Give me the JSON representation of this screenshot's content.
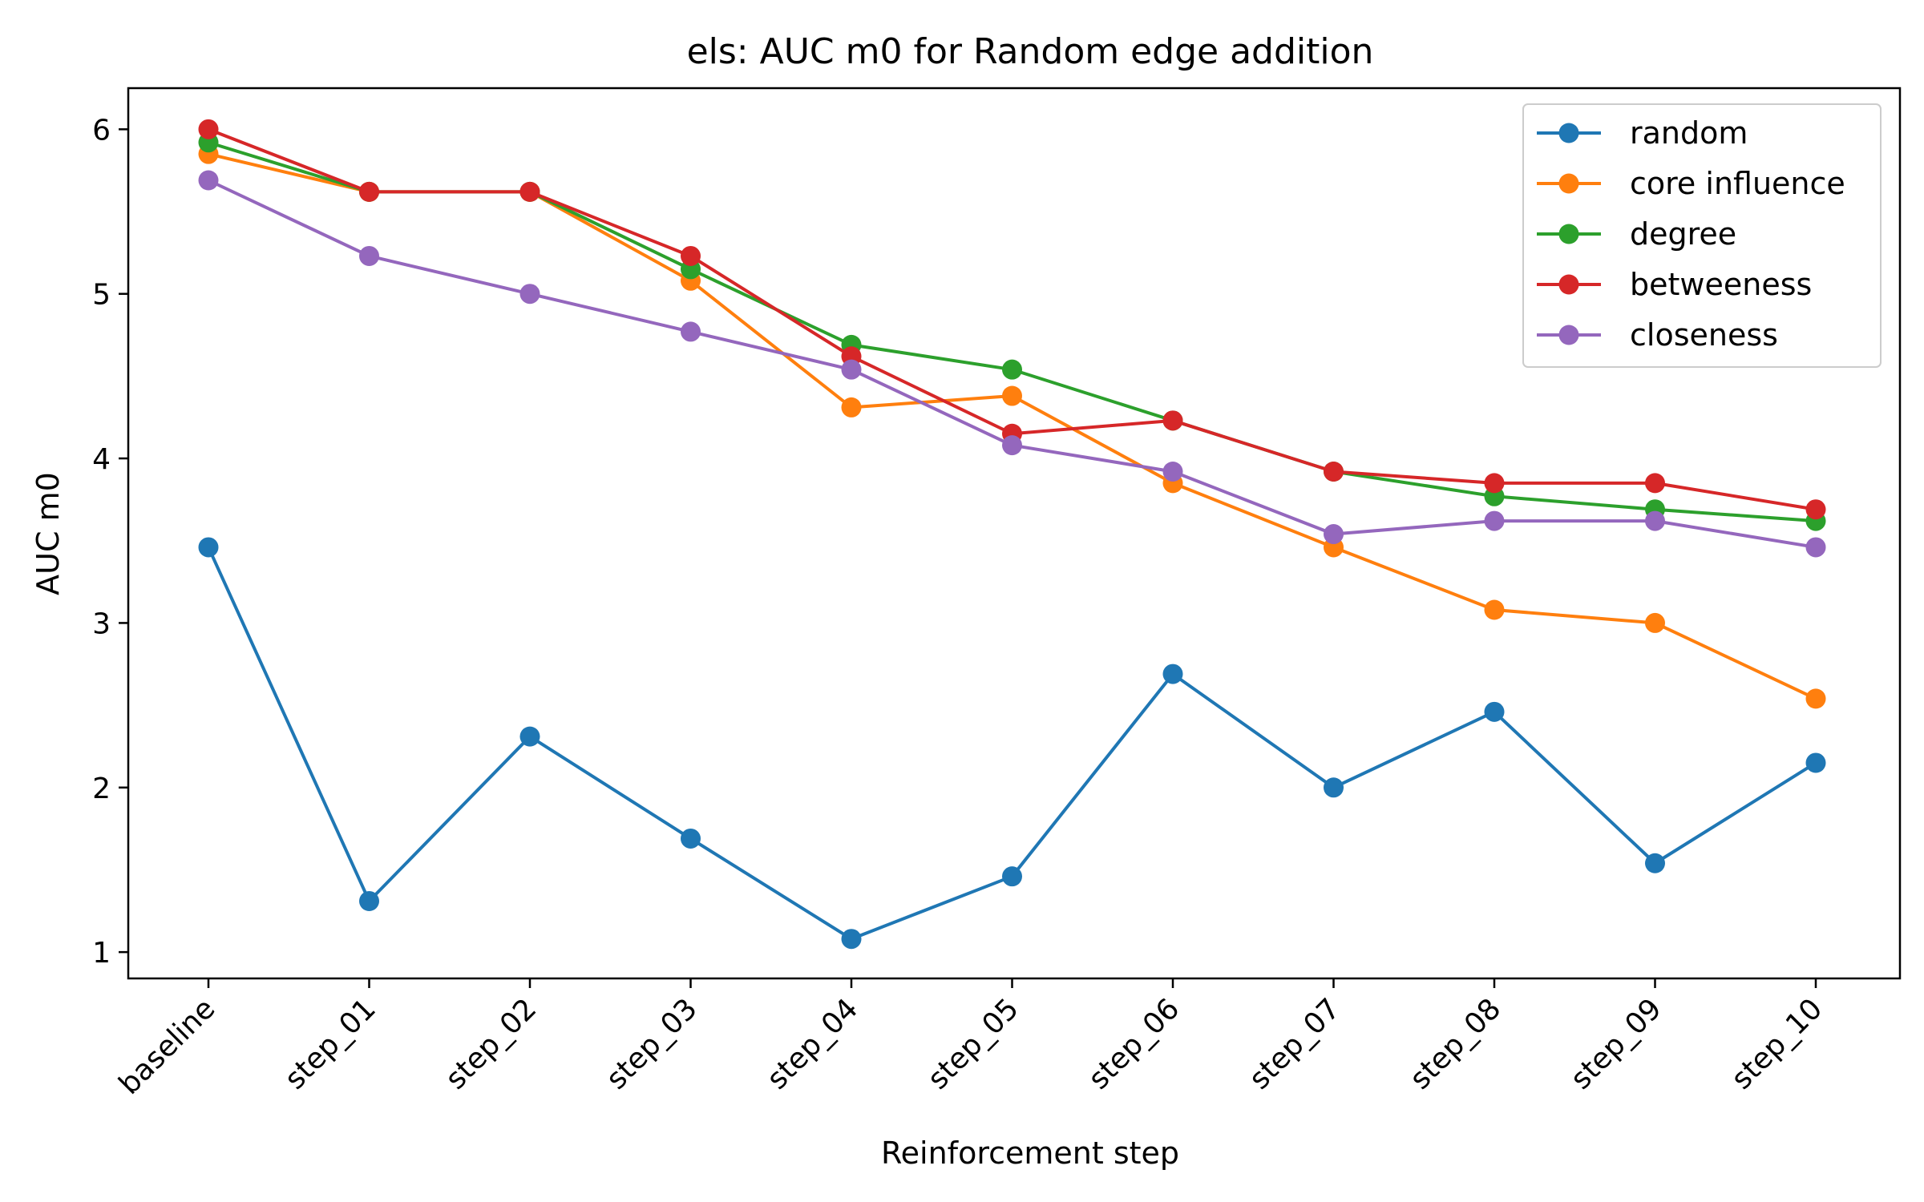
{
  "chart_data": {
    "type": "line",
    "title": "els: AUC m0 for Random edge addition",
    "xlabel": "Reinforcement step",
    "ylabel": "AUC m0",
    "categories": [
      "baseline",
      "step_01",
      "step_02",
      "step_03",
      "step_04",
      "step_05",
      "step_06",
      "step_07",
      "step_08",
      "step_09",
      "step_10"
    ],
    "yticks": [
      1,
      2,
      3,
      4,
      5,
      6
    ],
    "ylim": [
      0.84,
      6.25
    ],
    "grid": false,
    "legend_position": "top-right",
    "series": [
      {
        "name": "random",
        "color": "#1f77b4",
        "values": [
          3.46,
          1.31,
          2.31,
          1.69,
          1.08,
          1.46,
          2.69,
          2.0,
          2.46,
          1.54,
          2.15
        ]
      },
      {
        "name": "core influence",
        "color": "#ff7f0e",
        "values": [
          5.85,
          5.62,
          5.62,
          5.08,
          4.31,
          4.38,
          3.85,
          3.46,
          3.08,
          3.0,
          2.54
        ]
      },
      {
        "name": "degree",
        "color": "#2ca02c",
        "values": [
          5.92,
          5.62,
          5.62,
          5.15,
          4.69,
          4.54,
          4.23,
          3.92,
          3.77,
          3.69,
          3.62
        ]
      },
      {
        "name": "betweeness",
        "color": "#d62728",
        "values": [
          6.0,
          5.62,
          5.62,
          5.23,
          4.62,
          4.15,
          4.23,
          3.92,
          3.85,
          3.85,
          3.69
        ]
      },
      {
        "name": "closeness",
        "color": "#9467bd",
        "values": [
          5.69,
          5.23,
          5.0,
          4.77,
          4.54,
          4.08,
          3.92,
          3.54,
          3.62,
          3.62,
          3.46
        ]
      }
    ]
  }
}
